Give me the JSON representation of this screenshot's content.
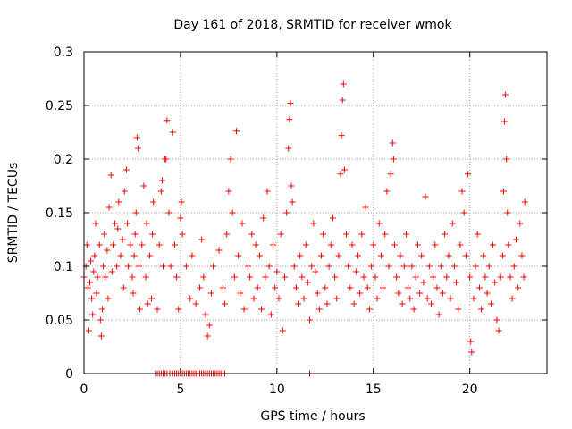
{
  "chart_data": {
    "type": "scatter",
    "title": "Day 161 of 2018, SRMTID for receiver wmok",
    "xlabel": "GPS time / hours",
    "ylabel": "SRMTID / TECUs",
    "xlim": [
      0,
      24
    ],
    "ylim": [
      0,
      0.3
    ],
    "x_ticks": [
      0,
      5,
      10,
      15,
      20
    ],
    "x_tick_labels": [
      "0",
      "5",
      "10",
      "15",
      "20"
    ],
    "y_ticks": [
      0,
      0.05,
      0.1,
      0.15,
      0.2,
      0.25,
      0.3
    ],
    "y_tick_labels": [
      "0",
      "0.05",
      "0.1",
      "0.15",
      "0.2",
      "0.25",
      "0.3"
    ],
    "grid": true,
    "marker": "plus",
    "color": "#ff0000",
    "series": [
      {
        "name": "SRMTID",
        "note": "dense cloud of ~2500 points; representative subset, values estimated from gridlines",
        "points": [
          [
            0.0,
            0.09
          ],
          [
            0.1,
            0.1
          ],
          [
            0.15,
            0.12
          ],
          [
            0.2,
            0.08
          ],
          [
            0.25,
            0.04
          ],
          [
            0.3,
            0.085
          ],
          [
            0.35,
            0.105
          ],
          [
            0.4,
            0.07
          ],
          [
            0.45,
            0.055
          ],
          [
            0.5,
            0.095
          ],
          [
            0.55,
            0.11
          ],
          [
            0.6,
            0.14
          ],
          [
            0.65,
            0.075
          ],
          [
            0.7,
            0.09
          ],
          [
            0.8,
            0.12
          ],
          [
            0.85,
            0.05
          ],
          [
            0.9,
            0.035
          ],
          [
            0.95,
            0.06
          ],
          [
            1.0,
            0.1
          ],
          [
            1.05,
            0.13
          ],
          [
            1.1,
            0.09
          ],
          [
            1.2,
            0.115
          ],
          [
            1.25,
            0.07
          ],
          [
            1.3,
            0.155
          ],
          [
            1.4,
            0.185
          ],
          [
            1.45,
            0.095
          ],
          [
            1.5,
            0.12
          ],
          [
            1.6,
            0.14
          ],
          [
            1.7,
            0.1
          ],
          [
            1.75,
            0.135
          ],
          [
            1.8,
            0.16
          ],
          [
            1.9,
            0.11
          ],
          [
            2.0,
            0.125
          ],
          [
            2.05,
            0.08
          ],
          [
            2.1,
            0.17
          ],
          [
            2.2,
            0.19
          ],
          [
            2.25,
            0.14
          ],
          [
            2.3,
            0.1
          ],
          [
            2.4,
            0.12
          ],
          [
            2.5,
            0.09
          ],
          [
            2.55,
            0.075
          ],
          [
            2.6,
            0.11
          ],
          [
            2.65,
            0.13
          ],
          [
            2.7,
            0.15
          ],
          [
            2.75,
            0.22
          ],
          [
            2.8,
            0.21
          ],
          [
            2.85,
            0.1
          ],
          [
            2.9,
            0.06
          ],
          [
            3.0,
            0.12
          ],
          [
            3.1,
            0.175
          ],
          [
            3.2,
            0.09
          ],
          [
            3.25,
            0.14
          ],
          [
            3.3,
            0.065
          ],
          [
            3.4,
            0.11
          ],
          [
            3.5,
            0.07
          ],
          [
            3.55,
            0.13
          ],
          [
            3.6,
            0.16
          ],
          [
            3.8,
            0.06
          ],
          [
            3.9,
            0.12
          ],
          [
            4.0,
            0.17
          ],
          [
            4.05,
            0.18
          ],
          [
            4.1,
            0.1
          ],
          [
            4.2,
            0.2
          ],
          [
            4.25,
            0.2
          ],
          [
            4.3,
            0.236
          ],
          [
            4.4,
            0.15
          ],
          [
            4.5,
            0.1
          ],
          [
            4.6,
            0.225
          ],
          [
            4.7,
            0.12
          ],
          [
            4.8,
            0.09
          ],
          [
            4.9,
            0.06
          ],
          [
            5.0,
            0.145
          ],
          [
            5.05,
            0.16
          ],
          [
            5.1,
            0.13
          ],
          [
            5.3,
            0.1
          ],
          [
            5.5,
            0.07
          ],
          [
            5.6,
            0.11
          ],
          [
            5.8,
            0.065
          ],
          [
            6.0,
            0.08
          ],
          [
            6.1,
            0.125
          ],
          [
            6.2,
            0.09
          ],
          [
            6.3,
            0.055
          ],
          [
            6.4,
            0.035
          ],
          [
            6.5,
            0.045
          ],
          [
            6.6,
            0.075
          ],
          [
            6.7,
            0.1
          ],
          [
            7.0,
            0.115
          ],
          [
            7.2,
            0.08
          ],
          [
            7.3,
            0.065
          ],
          [
            7.4,
            0.13
          ],
          [
            7.5,
            0.17
          ],
          [
            7.6,
            0.2
          ],
          [
            7.7,
            0.15
          ],
          [
            7.8,
            0.09
          ],
          [
            7.9,
            0.226
          ],
          [
            8.0,
            0.11
          ],
          [
            8.1,
            0.075
          ],
          [
            8.2,
            0.14
          ],
          [
            8.3,
            0.06
          ],
          [
            8.5,
            0.1
          ],
          [
            8.6,
            0.09
          ],
          [
            8.7,
            0.13
          ],
          [
            8.8,
            0.07
          ],
          [
            8.9,
            0.12
          ],
          [
            9.0,
            0.08
          ],
          [
            9.1,
            0.11
          ],
          [
            9.2,
            0.06
          ],
          [
            9.3,
            0.145
          ],
          [
            9.4,
            0.09
          ],
          [
            9.5,
            0.17
          ],
          [
            9.6,
            0.1
          ],
          [
            9.7,
            0.055
          ],
          [
            9.8,
            0.12
          ],
          [
            9.9,
            0.08
          ],
          [
            10.0,
            0.095
          ],
          [
            10.1,
            0.07
          ],
          [
            10.2,
            0.13
          ],
          [
            10.3,
            0.04
          ],
          [
            10.4,
            0.09
          ],
          [
            10.5,
            0.15
          ],
          [
            10.6,
            0.21
          ],
          [
            10.65,
            0.237
          ],
          [
            10.7,
            0.252
          ],
          [
            10.75,
            0.175
          ],
          [
            10.8,
            0.16
          ],
          [
            10.9,
            0.1
          ],
          [
            11.0,
            0.08
          ],
          [
            11.1,
            0.065
          ],
          [
            11.2,
            0.11
          ],
          [
            11.3,
            0.09
          ],
          [
            11.4,
            0.07
          ],
          [
            11.5,
            0.12
          ],
          [
            11.6,
            0.085
          ],
          [
            11.7,
            0.05
          ],
          [
            11.8,
            0.1
          ],
          [
            11.9,
            0.14
          ],
          [
            12.0,
            0.095
          ],
          [
            12.1,
            0.075
          ],
          [
            12.2,
            0.06
          ],
          [
            12.3,
            0.11
          ],
          [
            12.4,
            0.13
          ],
          [
            12.5,
            0.08
          ],
          [
            12.6,
            0.065
          ],
          [
            12.7,
            0.1
          ],
          [
            12.8,
            0.12
          ],
          [
            12.9,
            0.145
          ],
          [
            13.0,
            0.09
          ],
          [
            13.1,
            0.07
          ],
          [
            13.2,
            0.11
          ],
          [
            13.3,
            0.186
          ],
          [
            13.35,
            0.222
          ],
          [
            13.4,
            0.255
          ],
          [
            13.45,
            0.27
          ],
          [
            13.5,
            0.19
          ],
          [
            13.6,
            0.13
          ],
          [
            13.7,
            0.1
          ],
          [
            13.8,
            0.08
          ],
          [
            13.9,
            0.12
          ],
          [
            14.0,
            0.065
          ],
          [
            14.1,
            0.095
          ],
          [
            14.2,
            0.11
          ],
          [
            14.3,
            0.075
          ],
          [
            14.4,
            0.13
          ],
          [
            14.5,
            0.09
          ],
          [
            14.6,
            0.155
          ],
          [
            14.7,
            0.08
          ],
          [
            14.8,
            0.06
          ],
          [
            14.9,
            0.1
          ],
          [
            15.0,
            0.12
          ],
          [
            15.1,
            0.09
          ],
          [
            15.2,
            0.07
          ],
          [
            15.3,
            0.14
          ],
          [
            15.4,
            0.11
          ],
          [
            15.5,
            0.08
          ],
          [
            15.6,
            0.13
          ],
          [
            15.7,
            0.17
          ],
          [
            15.8,
            0.1
          ],
          [
            15.9,
            0.186
          ],
          [
            16.0,
            0.215
          ],
          [
            16.05,
            0.2
          ],
          [
            16.1,
            0.12
          ],
          [
            16.2,
            0.09
          ],
          [
            16.3,
            0.075
          ],
          [
            16.4,
            0.11
          ],
          [
            16.5,
            0.065
          ],
          [
            16.6,
            0.1
          ],
          [
            16.7,
            0.13
          ],
          [
            16.8,
            0.08
          ],
          [
            16.9,
            0.07
          ],
          [
            17.0,
            0.1
          ],
          [
            17.1,
            0.06
          ],
          [
            17.2,
            0.09
          ],
          [
            17.3,
            0.12
          ],
          [
            17.4,
            0.075
          ],
          [
            17.5,
            0.11
          ],
          [
            17.6,
            0.085
          ],
          [
            17.7,
            0.165
          ],
          [
            17.8,
            0.07
          ],
          [
            17.9,
            0.1
          ],
          [
            18.0,
            0.065
          ],
          [
            18.1,
            0.09
          ],
          [
            18.2,
            0.12
          ],
          [
            18.3,
            0.08
          ],
          [
            18.4,
            0.055
          ],
          [
            18.5,
            0.1
          ],
          [
            18.6,
            0.075
          ],
          [
            18.7,
            0.13
          ],
          [
            18.8,
            0.09
          ],
          [
            18.9,
            0.11
          ],
          [
            19.0,
            0.07
          ],
          [
            19.1,
            0.14
          ],
          [
            19.2,
            0.1
          ],
          [
            19.3,
            0.085
          ],
          [
            19.4,
            0.06
          ],
          [
            19.5,
            0.12
          ],
          [
            19.6,
            0.17
          ],
          [
            19.7,
            0.15
          ],
          [
            19.8,
            0.11
          ],
          [
            19.9,
            0.186
          ],
          [
            20.0,
            0.09
          ],
          [
            20.05,
            0.03
          ],
          [
            20.1,
            0.02
          ],
          [
            20.2,
            0.07
          ],
          [
            20.3,
            0.1
          ],
          [
            20.4,
            0.13
          ],
          [
            20.5,
            0.08
          ],
          [
            20.6,
            0.06
          ],
          [
            20.7,
            0.11
          ],
          [
            20.8,
            0.09
          ],
          [
            20.9,
            0.075
          ],
          [
            21.0,
            0.1
          ],
          [
            21.1,
            0.065
          ],
          [
            21.2,
            0.12
          ],
          [
            21.3,
            0.085
          ],
          [
            21.4,
            0.05
          ],
          [
            21.5,
            0.04
          ],
          [
            21.6,
            0.09
          ],
          [
            21.7,
            0.11
          ],
          [
            21.75,
            0.17
          ],
          [
            21.8,
            0.235
          ],
          [
            21.85,
            0.26
          ],
          [
            21.9,
            0.2
          ],
          [
            21.95,
            0.15
          ],
          [
            22.0,
            0.12
          ],
          [
            22.1,
            0.09
          ],
          [
            22.2,
            0.07
          ],
          [
            22.3,
            0.1
          ],
          [
            22.4,
            0.125
          ],
          [
            22.5,
            0.08
          ],
          [
            22.6,
            0.14
          ],
          [
            22.7,
            0.11
          ],
          [
            22.8,
            0.09
          ],
          [
            22.85,
            0.16
          ]
        ],
        "zero_points": [
          3.7,
          3.8,
          3.9,
          4.0,
          4.1,
          4.2,
          4.3,
          4.45,
          4.6,
          4.7,
          4.8,
          4.9,
          5.0,
          5.1,
          5.2,
          5.3,
          5.4,
          5.5,
          5.6,
          5.7,
          5.8,
          5.9,
          6.0,
          6.1,
          6.2,
          6.3,
          6.4,
          6.5,
          6.6,
          6.7,
          6.8,
          6.9,
          7.0,
          7.1,
          7.2,
          7.3,
          11.7
        ]
      }
    ]
  }
}
